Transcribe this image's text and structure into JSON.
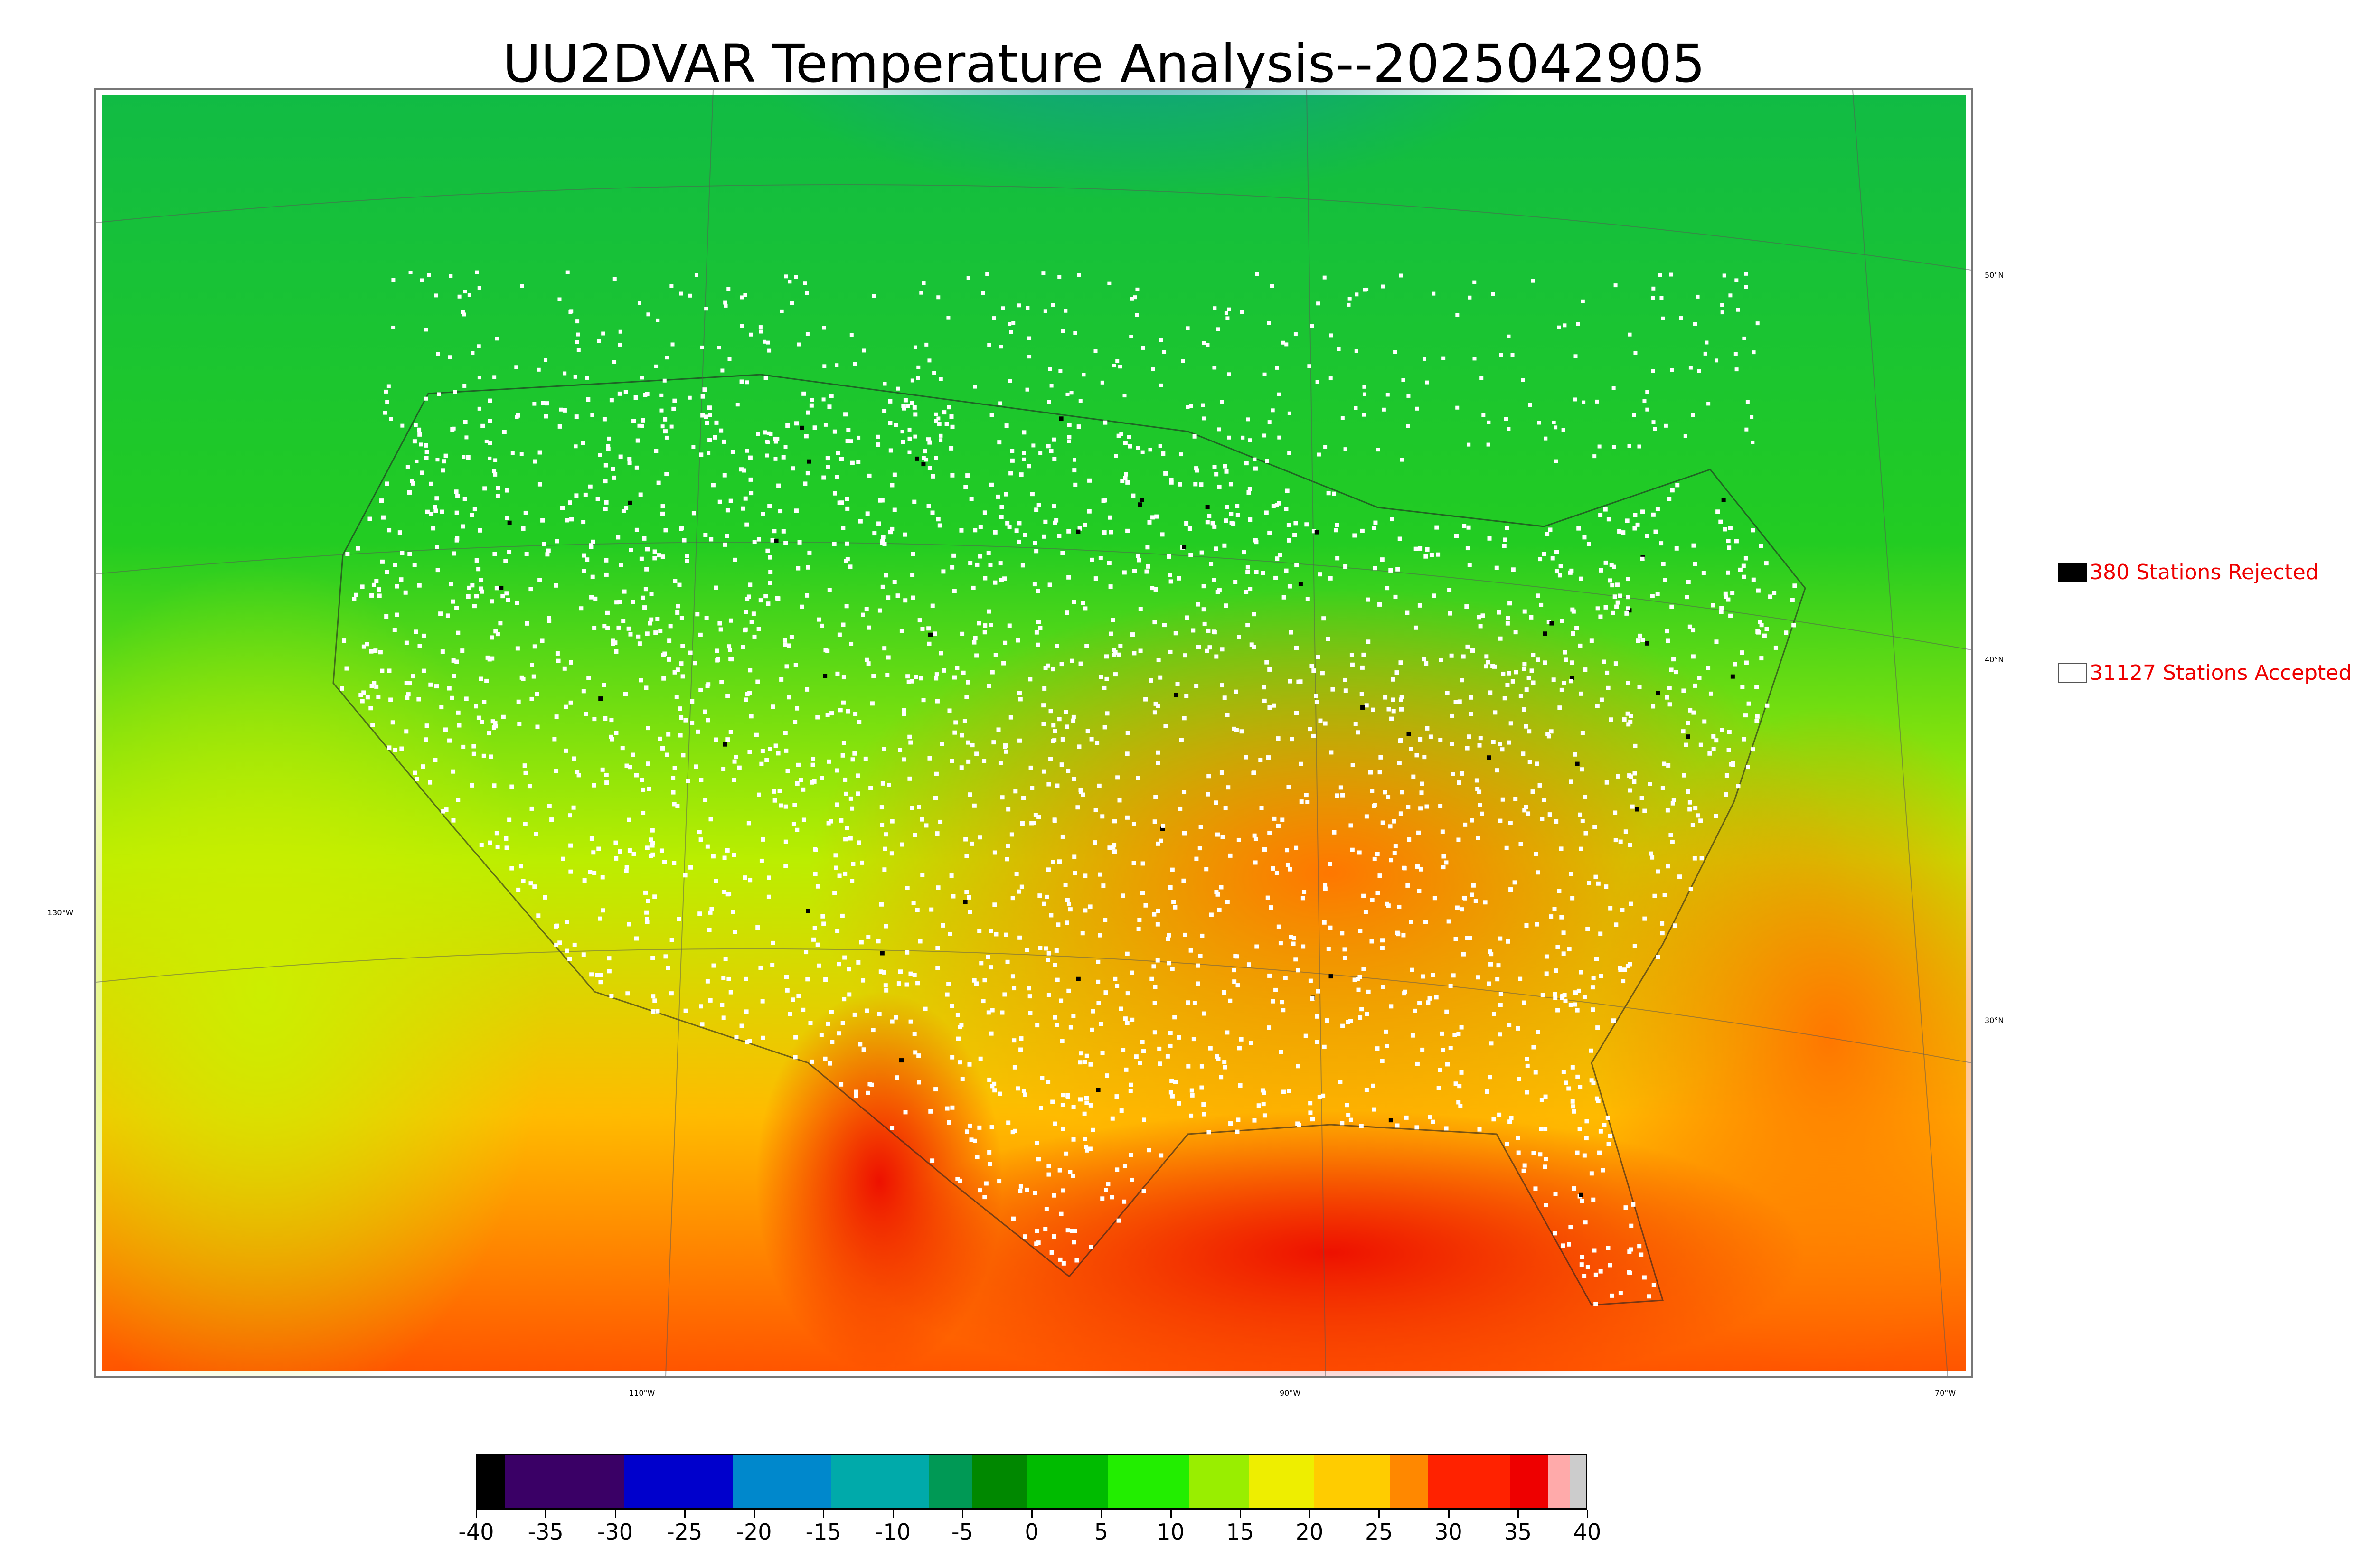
{
  "title": "UU2DVAR Temperature Analysis--2025042905",
  "graticule": {
    "lat_labels": [
      "50°N",
      "40°N",
      "30°N"
    ],
    "lon_labels": [
      "130°W",
      "110°W",
      "90°W",
      "70°W"
    ]
  },
  "legend": {
    "rejected": {
      "label": "380 Stations Rejected",
      "swatch_color": "#000000"
    },
    "accepted": {
      "label": "31127 Stations Accepted",
      "swatch_color": "#ffffff"
    },
    "text_color": "#ee0000"
  },
  "colorbar": {
    "ticks": [
      "-40",
      "-35",
      "-30",
      "-25",
      "-20",
      "-15",
      "-10",
      "-5",
      "0",
      "5",
      "10",
      "15",
      "20",
      "25",
      "30",
      "35",
      "40"
    ],
    "colors": [
      "#0a0a0a",
      "#3c0070",
      "#3c0070",
      "#0000c8",
      "#0000c8",
      "#0088cc",
      "#00aaaa",
      "#009944",
      "#00aa00",
      "#22dd00",
      "#99ee00",
      "#eeee00",
      "#ffcc00",
      "#ff9900",
      "#ee0000",
      "#ee0000",
      "#ffaaaa",
      "#cccccc"
    ]
  },
  "map_colors": {
    "cold_north": "#11aa99",
    "cool": "#11bb33",
    "mild": "#33dd11",
    "warm_ocean": "#ddee00",
    "hot_south": "#ff8800",
    "very_hot": "#ee1100",
    "station_accepted": "#ffffff",
    "station_rejected": "#000000"
  }
}
